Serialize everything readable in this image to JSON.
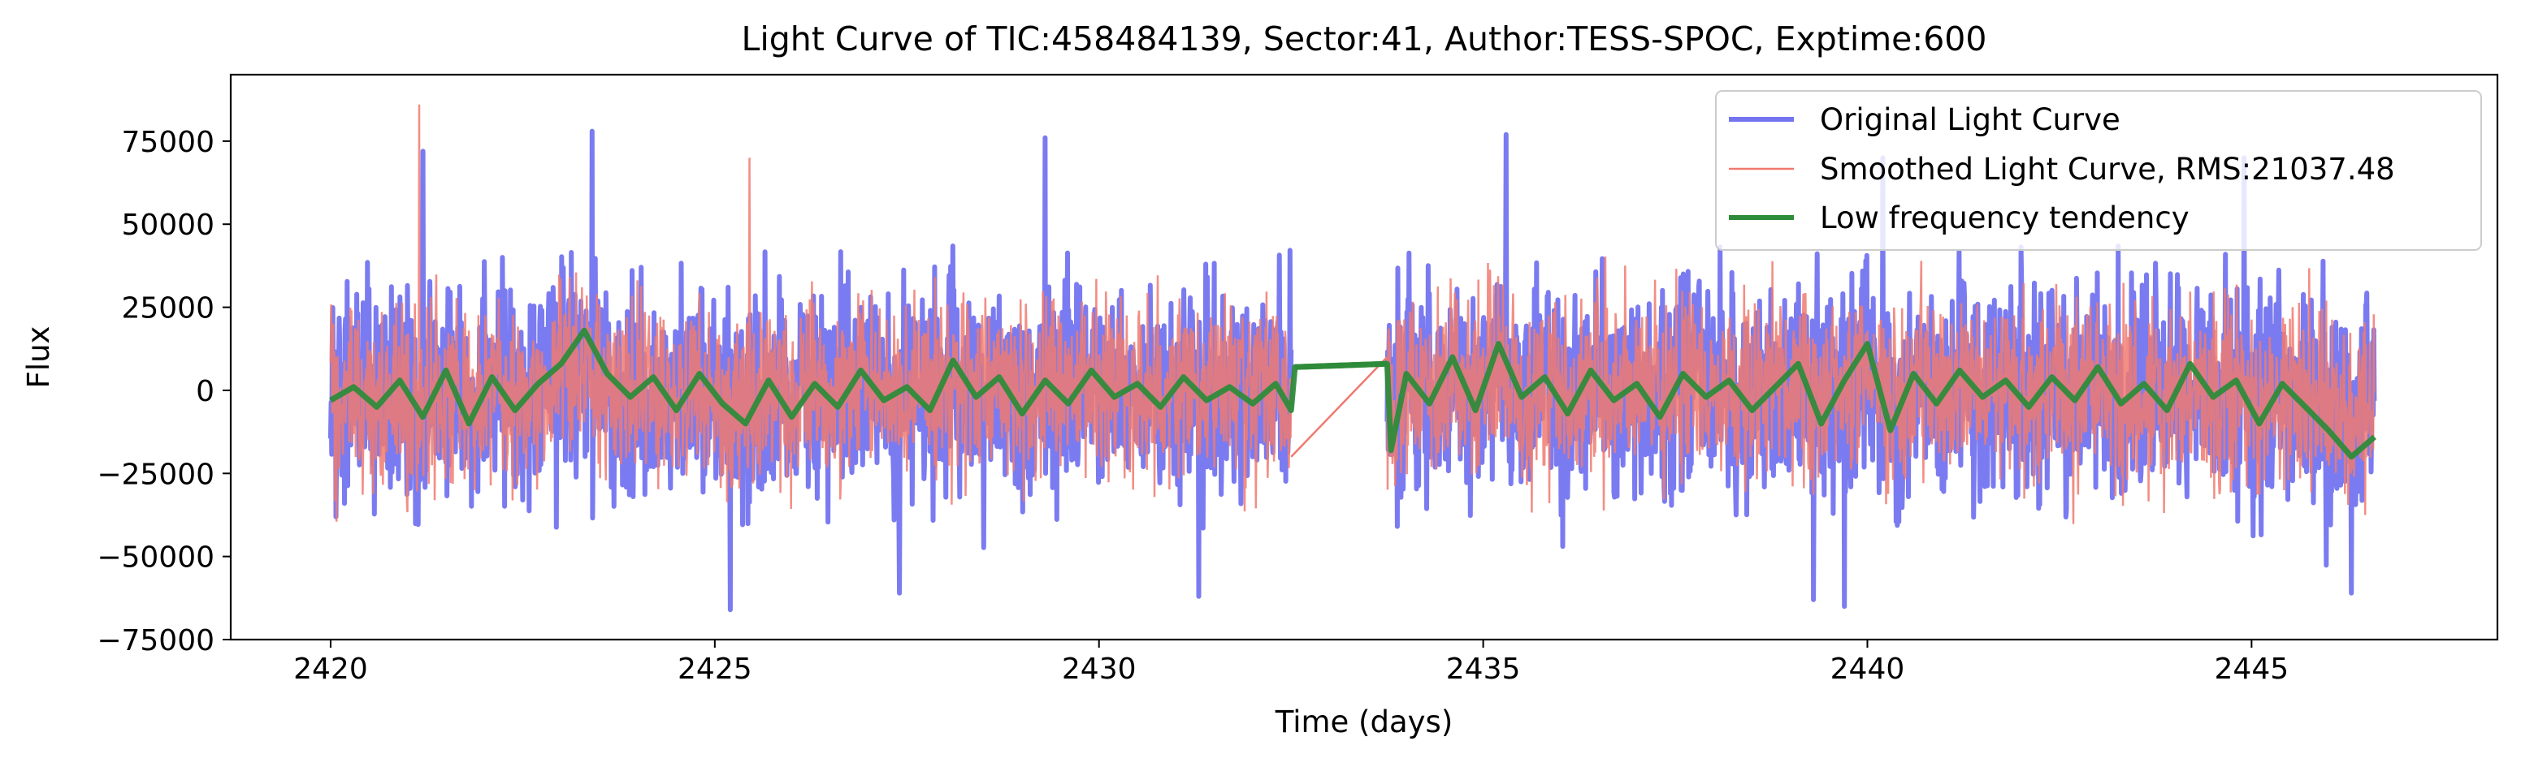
{
  "chart_data": {
    "type": "line",
    "title": "Light Curve of TIC:458484139, Sector:41, Author:TESS-SPOC, Exptime:600",
    "xlabel": "Time (days)",
    "ylabel": "Flux",
    "xlim": [
      2418.7,
      2448.2
    ],
    "ylim": [
      -75000,
      95000
    ],
    "x_ticks": [
      2420,
      2425,
      2430,
      2435,
      2440,
      2445
    ],
    "x_tick_labels": [
      "2420",
      "2425",
      "2430",
      "2435",
      "2440",
      "2445"
    ],
    "y_ticks": [
      -75000,
      -50000,
      -25000,
      0,
      25000,
      50000,
      75000
    ],
    "y_tick_labels": [
      "−75000",
      "−50000",
      "−25000",
      "0",
      "25000",
      "50000",
      "75000"
    ],
    "grid": false,
    "legend_position": "top-right",
    "segments": [
      [
        2420.0,
        2432.5
      ],
      [
        2433.75,
        2446.6
      ]
    ],
    "series": [
      {
        "name": "Original Light Curve",
        "color": "#7474f0",
        "style": "thick noisy signal",
        "approx_rms": 24000,
        "max": 78000,
        "min": -66000,
        "notable_peaks": [
          [
            2421.2,
            72000
          ],
          [
            2423.4,
            78000
          ],
          [
            2425.2,
            72000
          ],
          [
            2429.3,
            76000
          ],
          [
            2435.3,
            77000
          ],
          [
            2440.2,
            70000
          ],
          [
            2444.9,
            70000
          ]
        ],
        "notable_troughs": [
          [
            2425.2,
            -66000
          ],
          [
            2427.4,
            -61000
          ],
          [
            2431.3,
            -62000
          ],
          [
            2439.3,
            -63000
          ],
          [
            2439.7,
            -65000
          ],
          [
            2446.3,
            -61000
          ]
        ]
      },
      {
        "name": "Smoothed Light Curve, RMS:21037.48",
        "color": "#f07a70",
        "style": "thin noisy signal",
        "approx_rms": 21037.48,
        "max": 86000,
        "min": -67000,
        "notable_peaks": [
          [
            2421.15,
            86000
          ],
          [
            2425.45,
            70000
          ],
          [
            2433.75,
            10000
          ]
        ],
        "gap_bridge": [
          [
            2432.5,
            -20000
          ],
          [
            2433.75,
            10000
          ]
        ]
      },
      {
        "name": "Low frequency tendency",
        "color": "#2e8b3a",
        "style": "thick smooth trend",
        "values_x": [
          2420.0,
          2420.3,
          2420.6,
          2420.9,
          2421.2,
          2421.5,
          2421.8,
          2422.1,
          2422.4,
          2422.7,
          2423.0,
          2423.3,
          2423.6,
          2423.9,
          2424.2,
          2424.5,
          2424.8,
          2425.1,
          2425.4,
          2425.7,
          2426.0,
          2426.3,
          2426.6,
          2426.9,
          2427.2,
          2427.5,
          2427.8,
          2428.1,
          2428.4,
          2428.7,
          2429.0,
          2429.3,
          2429.6,
          2429.9,
          2430.2,
          2430.5,
          2430.8,
          2431.1,
          2431.4,
          2431.7,
          2432.0,
          2432.3,
          2432.5,
          2432.55,
          2433.75,
          2433.8,
          2434.0,
          2434.3,
          2434.6,
          2434.9,
          2435.2,
          2435.5,
          2435.8,
          2436.1,
          2436.4,
          2436.7,
          2437.0,
          2437.3,
          2437.6,
          2437.9,
          2438.2,
          2438.5,
          2438.8,
          2439.1,
          2439.4,
          2439.7,
          2440.0,
          2440.3,
          2440.6,
          2440.9,
          2441.2,
          2441.5,
          2441.8,
          2442.1,
          2442.4,
          2442.7,
          2443.0,
          2443.3,
          2443.6,
          2443.9,
          2444.2,
          2444.5,
          2444.8,
          2445.1,
          2445.4,
          2445.7,
          2446.0,
          2446.3,
          2446.6
        ],
        "values_y": [
          -3000,
          1000,
          -5000,
          3000,
          -8000,
          6000,
          -10000,
          4000,
          -6000,
          2000,
          8000,
          18000,
          5000,
          -2000,
          4000,
          -6000,
          5000,
          -4000,
          -10000,
          3000,
          -8000,
          2000,
          -5000,
          6000,
          -3000,
          1000,
          -6000,
          9000,
          -2000,
          4000,
          -7000,
          3000,
          -4000,
          6000,
          -2000,
          2000,
          -5000,
          4000,
          -3000,
          1000,
          -4000,
          2000,
          -6000,
          7000,
          8000,
          -18000,
          5000,
          -4000,
          10000,
          -6000,
          14000,
          -2000,
          4000,
          -7000,
          6000,
          -3000,
          2000,
          -8000,
          5000,
          -2000,
          3000,
          -6000,
          1000,
          8000,
          -10000,
          3000,
          14000,
          -12000,
          5000,
          -4000,
          6000,
          -2000,
          3000,
          -5000,
          4000,
          -3000,
          7000,
          -4000,
          2000,
          -6000,
          8000,
          -2000,
          3000,
          -10000,
          2000,
          -5000,
          -12000,
          -20000,
          -14000
        ],
        "gap_line": [
          [
            2432.55,
            7000
          ],
          [
            2433.75,
            8000
          ]
        ]
      }
    ]
  }
}
